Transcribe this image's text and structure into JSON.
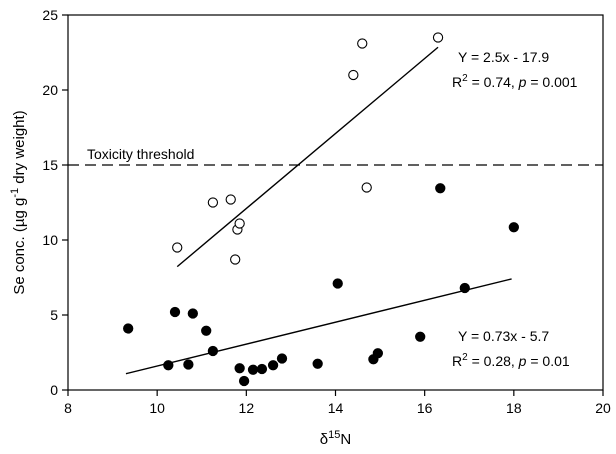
{
  "chart_data": {
    "type": "scatter",
    "xlabel": {
      "base": "δ",
      "sup": "15",
      "rest": "N"
    },
    "ylabel": {
      "pre": "Se conc. (µg g",
      "sup": "-1",
      "post": " dry weight)"
    },
    "xlim": [
      8,
      20
    ],
    "ylim": [
      0,
      25
    ],
    "xticks": [
      8,
      10,
      12,
      14,
      16,
      18,
      20
    ],
    "yticks": [
      0,
      5,
      10,
      15,
      20,
      25
    ],
    "grid": false,
    "series": [
      {
        "marker": "open-circle",
        "points": [
          [
            10.45,
            9.5
          ],
          [
            11.25,
            12.5
          ],
          [
            11.65,
            12.7
          ],
          [
            11.75,
            8.7
          ],
          [
            11.8,
            10.7
          ],
          [
            11.85,
            11.1
          ],
          [
            14.4,
            21.0
          ],
          [
            14.6,
            23.1
          ],
          [
            14.7,
            13.5
          ],
          [
            16.3,
            23.5
          ]
        ],
        "fit": {
          "slope": 2.5,
          "intercept": -17.9,
          "x_range": [
            10.45,
            16.3
          ]
        },
        "equation": "Y = 2.5x - 17.9",
        "r2": {
          "pre": "R",
          "sup": "2",
          "post": " = 0.74, ",
          "p": "p",
          "val": " = 0.001"
        }
      },
      {
        "marker": "filled-circle",
        "points": [
          [
            9.35,
            4.1
          ],
          [
            10.25,
            1.65
          ],
          [
            10.4,
            5.2
          ],
          [
            10.7,
            1.7
          ],
          [
            10.8,
            5.1
          ],
          [
            11.1,
            3.95
          ],
          [
            11.25,
            2.6
          ],
          [
            11.85,
            1.45
          ],
          [
            11.95,
            0.6
          ],
          [
            12.15,
            1.35
          ],
          [
            12.35,
            1.4
          ],
          [
            12.6,
            1.65
          ],
          [
            12.8,
            2.1
          ],
          [
            13.6,
            1.75
          ],
          [
            14.05,
            7.1
          ],
          [
            14.85,
            2.05
          ],
          [
            14.95,
            2.45
          ],
          [
            15.9,
            3.55
          ],
          [
            16.35,
            13.45
          ],
          [
            16.9,
            6.8
          ],
          [
            18.0,
            10.85
          ]
        ],
        "fit": {
          "slope": 0.73,
          "intercept": -5.7,
          "x_range": [
            9.3,
            17.95
          ]
        },
        "equation": "Y = 0.73x - 5.7",
        "r2": {
          "pre": "R",
          "sup": "2",
          "post": " = 0.28, ",
          "p": "p",
          "val": " = 0.01"
        }
      }
    ],
    "threshold": {
      "y": 15,
      "label": "Toxicity threshold",
      "style": "dashed"
    }
  }
}
